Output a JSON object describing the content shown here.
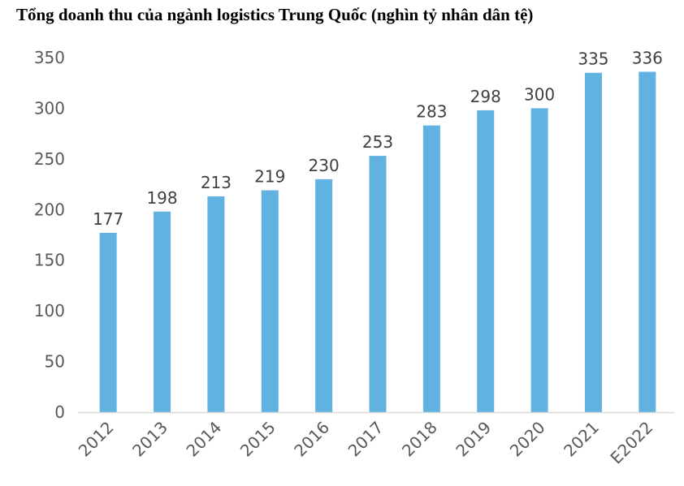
{
  "chart_data": {
    "type": "bar",
    "title": "Tổng doanh thu của ngành logistics Trung Quốc (nghìn tỷ nhân dân tệ)",
    "categories": [
      "2012",
      "2013",
      "2014",
      "2015",
      "2016",
      "2017",
      "2018",
      "2019",
      "2020",
      "2021",
      "E2022"
    ],
    "values": [
      177,
      198,
      213,
      219,
      230,
      253,
      283,
      298,
      300,
      335,
      336
    ],
    "data_labels": [
      "177",
      "198",
      "213",
      "219",
      "230",
      "253",
      "283",
      "298",
      "300",
      "335",
      "336"
    ],
    "y_ticks": [
      "0",
      "50",
      "100",
      "150",
      "200",
      "250",
      "300",
      "350"
    ],
    "ylim": [
      0,
      350
    ],
    "xlabel": "",
    "ylabel": "",
    "grid": false,
    "legend": "none",
    "bar_color": "#62B2E1",
    "axis_color": "#D9D9D9"
  }
}
